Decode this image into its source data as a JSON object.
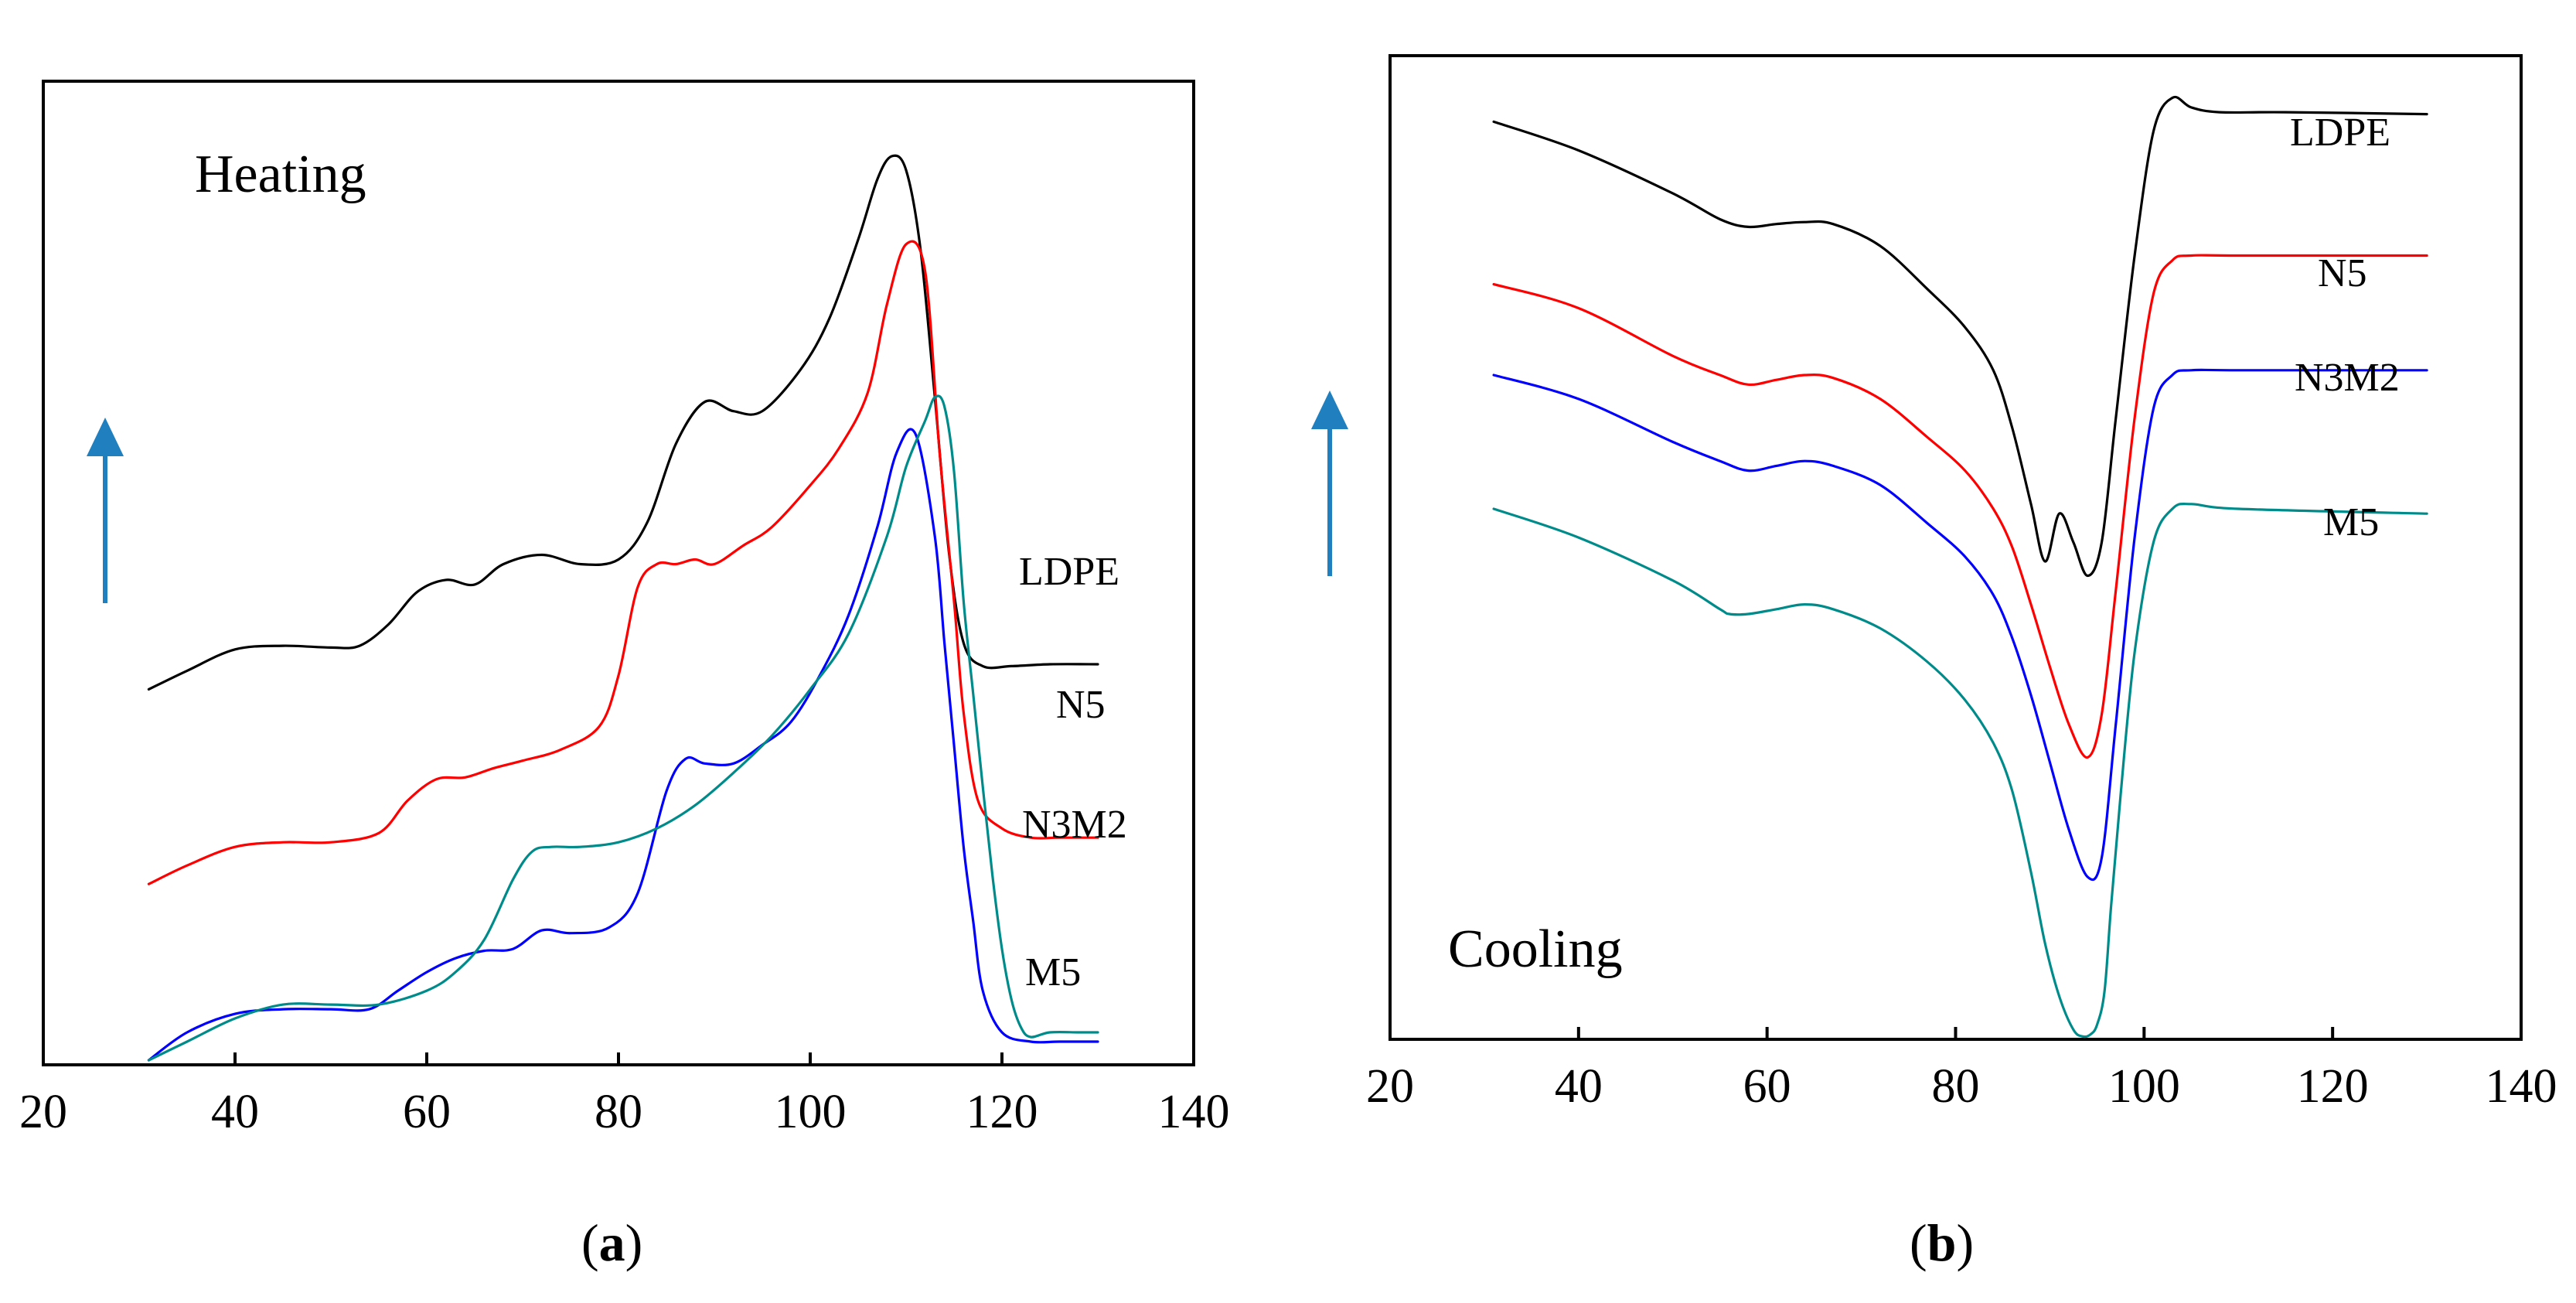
{
  "chart_data": [
    {
      "type": "line",
      "panel": "a",
      "title": "Heating",
      "caption": "(a)",
      "caption_letter": "a",
      "xlabel": "",
      "ylabel": "",
      "xlim": [
        20,
        140
      ],
      "ylim": [
        0,
        100
      ],
      "x_ticks": [
        "20",
        "40",
        "60",
        "80",
        "100",
        "120",
        "140"
      ],
      "x_tick_values": [
        20,
        40,
        60,
        80,
        100,
        120,
        140
      ],
      "grid": false,
      "arrow": "up",
      "series": [
        {
          "name": "LDPE",
          "color": "#000000",
          "x": [
            31,
            35,
            40,
            45,
            50,
            53,
            56,
            59,
            62,
            65,
            68,
            72,
            76,
            80,
            83,
            86,
            89,
            92,
            95,
            99,
            102,
            105,
            107,
            108.5,
            110,
            111.5,
            113,
            114.5,
            116,
            118,
            121,
            125,
            130
          ],
          "y": [
            40.5,
            42.5,
            44.8,
            45.2,
            45.0,
            45.2,
            47.5,
            51.0,
            52.3,
            51.8,
            54.0,
            55.0,
            54.0,
            54.5,
            58.5,
            67.0,
            71.5,
            70.5,
            70.5,
            75.0,
            80.5,
            89.0,
            95.5,
            98.0,
            96.5,
            88.0,
            72.0,
            55.0,
            45.5,
            43.0,
            43.0,
            43.2,
            43.2
          ]
        },
        {
          "name": "N5",
          "color": "#ff0000",
          "x": [
            31,
            35,
            40,
            45,
            50,
            55,
            58,
            61,
            64,
            67,
            70,
            74,
            78,
            80,
            82,
            84,
            86,
            88,
            90,
            93,
            96,
            100,
            103,
            106,
            108,
            110,
            112,
            113.5,
            115,
            116,
            117.5,
            120,
            123,
            126,
            130
          ],
          "y": [
            19.5,
            21.5,
            23.5,
            24.0,
            24.0,
            25.0,
            28.5,
            30.8,
            31.0,
            32.0,
            32.8,
            34.0,
            36.5,
            42.0,
            51.5,
            54.0,
            54.0,
            54.5,
            54.0,
            56.0,
            58.0,
            62.5,
            66.5,
            72.5,
            82.0,
            88.5,
            85.5,
            66.0,
            50.0,
            38.0,
            28.5,
            25.5,
            24.5,
            24.5,
            24.5
          ]
        },
        {
          "name": "N3M2",
          "color": "#0000ff",
          "x": [
            31,
            35,
            40,
            45,
            50,
            54,
            57,
            60,
            63,
            66,
            69,
            72,
            75,
            79,
            82,
            85,
            87,
            89,
            92,
            95,
            98,
            101,
            104,
            107,
            109,
            111,
            113,
            114,
            115,
            116,
            117,
            118,
            120,
            123,
            126,
            130
          ],
          "y": [
            0.5,
            3.5,
            5.5,
            6.0,
            6.0,
            6.0,
            8.0,
            10.0,
            11.5,
            12.3,
            12.5,
            14.5,
            14.2,
            14.8,
            18.5,
            29.5,
            33.0,
            32.5,
            32.5,
            34.5,
            37.0,
            42.0,
            48.5,
            58.0,
            66.0,
            68.0,
            57.0,
            45.5,
            34.5,
            23.5,
            15.5,
            8.0,
            3.5,
            2.5,
            2.5,
            2.5
          ]
        },
        {
          "name": "M5",
          "color": "#008b8b",
          "x": [
            31,
            35,
            40,
            45,
            50,
            55,
            60,
            63,
            66,
            69,
            71,
            73,
            76,
            80,
            84,
            88,
            92,
            96,
            100,
            104,
            108,
            110,
            112,
            113,
            114,
            115,
            116,
            117,
            118,
            119,
            120,
            121,
            122,
            123,
            125,
            128,
            130
          ],
          "y": [
            0.5,
            2.5,
            5.0,
            6.5,
            6.5,
            6.5,
            8.0,
            10.0,
            13.5,
            20.0,
            23.0,
            23.5,
            23.5,
            24.0,
            25.5,
            28.0,
            31.5,
            35.5,
            40.5,
            46.5,
            57.0,
            64.5,
            69.5,
            72.0,
            71.0,
            64.0,
            50.0,
            40.0,
            30.0,
            20.5,
            12.5,
            7.0,
            4.0,
            3.0,
            3.5,
            3.5,
            3.5
          ]
        }
      ]
    },
    {
      "type": "line",
      "panel": "b",
      "title": "Cooling",
      "caption": "(b)",
      "caption_letter": "b",
      "xlabel": "",
      "ylabel": "",
      "xlim": [
        20,
        140
      ],
      "ylim": [
        0,
        100
      ],
      "x_ticks": [
        "20",
        "40",
        "60",
        "80",
        "100",
        "120",
        "140"
      ],
      "x_tick_values": [
        20,
        40,
        60,
        80,
        100,
        120,
        140
      ],
      "grid": false,
      "arrow": "up",
      "series": [
        {
          "name": "LDPE",
          "color": "#000000",
          "x": [
            31,
            40,
            50,
            55,
            58,
            61,
            64,
            67,
            72,
            77,
            81,
            84,
            86,
            88,
            89.5,
            91,
            92.5,
            94,
            95.5,
            97,
            99,
            101,
            103,
            105,
            108,
            115,
            130
          ],
          "y": [
            96.0,
            93.0,
            88.5,
            85.8,
            85.0,
            85.3,
            85.5,
            85.3,
            83.0,
            78.5,
            74.5,
            70.0,
            64.0,
            56.0,
            50.0,
            55.0,
            52.0,
            48.5,
            52.0,
            65.0,
            82.0,
            95.0,
            98.5,
            97.5,
            97.0,
            97.0,
            96.8
          ]
        },
        {
          "name": "N5",
          "color": "#ff0000",
          "x": [
            31,
            40,
            50,
            55,
            58,
            61,
            64,
            67,
            72,
            77,
            81,
            84,
            86,
            88,
            90,
            92,
            94,
            95.5,
            97,
            99,
            101,
            103,
            105,
            110,
            130
          ],
          "y": [
            79.0,
            76.5,
            71.5,
            69.5,
            68.5,
            69.0,
            69.5,
            69.2,
            67.0,
            63.0,
            59.5,
            55.5,
            51.5,
            45.5,
            39.0,
            33.0,
            29.5,
            34.0,
            47.0,
            65.0,
            78.0,
            81.5,
            82.0,
            82.0,
            82.0
          ]
        },
        {
          "name": "N3M2",
          "color": "#0000ff",
          "x": [
            31,
            40,
            50,
            55,
            58,
            61,
            64,
            67,
            72,
            77,
            81,
            84,
            86,
            88,
            90,
            92,
            94,
            95.5,
            97,
            99,
            101,
            103,
            105,
            110,
            130
          ],
          "y": [
            69.5,
            67.0,
            62.5,
            60.5,
            59.5,
            60.0,
            60.5,
            60.0,
            58.0,
            54.0,
            50.5,
            46.5,
            42.0,
            36.0,
            29.0,
            22.0,
            17.0,
            19.0,
            33.0,
            52.5,
            66.0,
            69.5,
            70.0,
            70.0,
            70.0
          ]
        },
        {
          "name": "M5",
          "color": "#008b8b",
          "x": [
            31,
            40,
            50,
            55,
            56,
            58,
            61,
            64,
            67,
            72,
            77,
            81,
            84,
            86,
            88,
            89.5,
            91,
            92.5,
            93.5,
            94.3,
            95,
            95.8,
            96.5,
            97.5,
            99,
            101,
            103,
            105,
            110,
            130
          ],
          "y": [
            55.5,
            52.5,
            48.0,
            45.0,
            44.5,
            44.5,
            45.0,
            45.5,
            45.0,
            43.0,
            39.5,
            35.5,
            31.0,
            26.0,
            17.5,
            10.0,
            4.5,
            1.0,
            0.3,
            0.5,
            1.5,
            5.0,
            14.0,
            25.5,
            40.5,
            52.0,
            55.5,
            56.0,
            55.5,
            55.0
          ]
        }
      ]
    }
  ]
}
